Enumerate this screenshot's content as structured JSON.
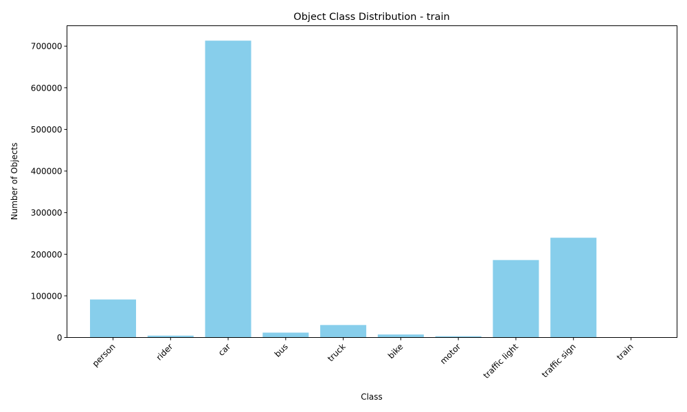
{
  "chart_data": {
    "type": "bar",
    "title": "Object Class Distribution - train",
    "xlabel": "Class",
    "ylabel": "Number of Objects",
    "categories": [
      "person",
      "rider",
      "car",
      "bus",
      "truck",
      "bike",
      "motor",
      "traffic light",
      "traffic sign",
      "train"
    ],
    "values": [
      91300,
      4500,
      713200,
      11700,
      30000,
      7200,
      3000,
      186100,
      239700,
      130
    ],
    "ylim": [
      0,
      749000
    ],
    "yticks": [
      0,
      100000,
      200000,
      300000,
      400000,
      500000,
      600000,
      700000
    ],
    "ytick_labels": [
      "0",
      "100000",
      "200000",
      "300000",
      "400000",
      "500000",
      "600000",
      "700000"
    ],
    "bar_color": "#87ceeb",
    "grid": false,
    "legend": "none"
  }
}
